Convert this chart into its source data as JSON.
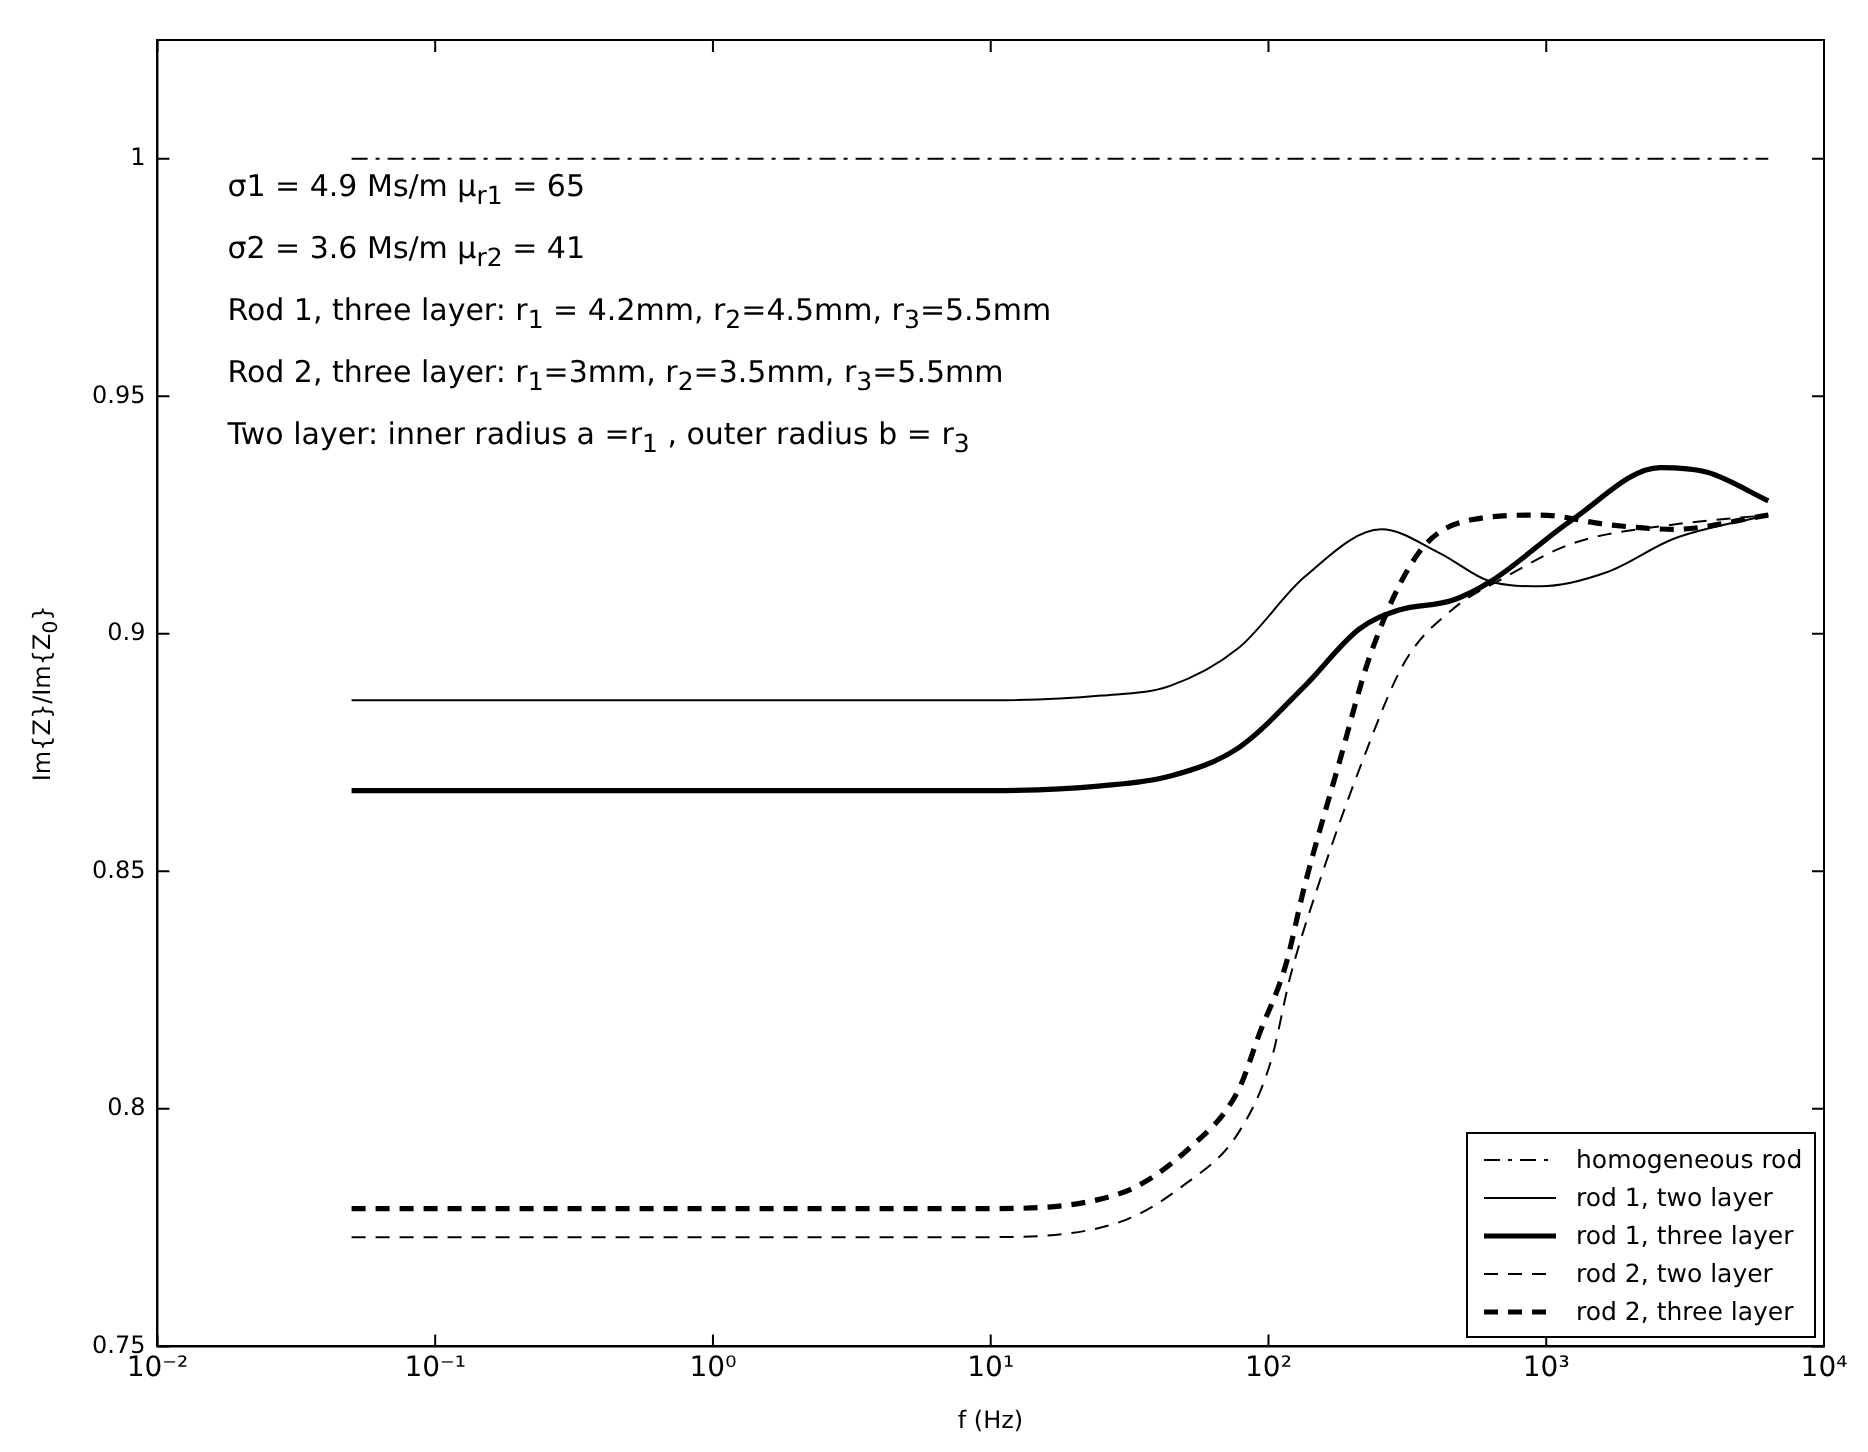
{
  "chart_data": {
    "type": "line",
    "xlabel": "f (Hz)",
    "ylabel": "Im{Z}/Im{Z$_{0}$}",
    "log": "x",
    "xlim": [
      0.01,
      10000
    ],
    "xticks": [
      {
        "value": 0.01,
        "label": "10⁻²"
      },
      {
        "value": 0.1,
        "label": "10⁻¹"
      },
      {
        "value": 1,
        "label": "10⁰"
      },
      {
        "value": 10,
        "label": "10¹"
      },
      {
        "value": 100,
        "label": "10²"
      },
      {
        "value": 1000,
        "label": "10³"
      },
      {
        "value": 10000,
        "label": "10⁴"
      }
    ],
    "ylim": [
      0.75,
      1.025
    ],
    "yticks": [
      0.75,
      0.8,
      0.85,
      0.9,
      0.95,
      1
    ],
    "grid": false,
    "legend": "bottom right",
    "marker": "none",
    "annotations": [
      "σ1 = 4.9 Ms/m  μ$_{r1}$ = 65",
      "σ2 = 3.6 Ms/m  μ$_{r2}$ = 41",
      "Rod 1, three  layer: r$_{1}$ = 4.2mm, r$_{2}$=4.5mm, r$_{3}$=5.5mm",
      "Rod 2, three  layer: r$_{1}$=3mm, r$_{2}$=3.5mm, r$_{3}$=5.5mm",
      "Two  layer: inner radius a =r$_{1}$ , outer radius b = r$_{3}$"
    ],
    "series": [
      {
        "name": "homogeneous rod",
        "color": "#000000",
        "line_style": "dashdot",
        "x": [
          0.05,
          6300
        ],
        "values": [
          1,
          1
        ]
      },
      {
        "name": "rod 1, two  layer",
        "color": "#000000",
        "line_style": "solid",
        "x": [
          0.05,
          10,
          25,
          44,
          78,
          135,
          255,
          413,
          630,
          955,
          1660,
          2880,
          6300
        ],
        "values": [
          0.886,
          0.886,
          0.887,
          0.889,
          0.897,
          0.912,
          0.922,
          0.917,
          0.911,
          0.91,
          0.913,
          0.92,
          0.925
        ]
      },
      {
        "name": "rod 1, three  layer",
        "color": "#000000",
        "line_style": "solid",
        "x": [
          0.05,
          10,
          25,
          44,
          78,
          135,
          212,
          295,
          457,
          630,
          1240,
          2570,
          3800,
          6300
        ],
        "values": [
          0.867,
          0.867,
          0.868,
          0.87,
          0.876,
          0.889,
          0.901,
          0.905,
          0.907,
          0.911,
          0.924,
          0.935,
          0.934,
          0.928
        ]
      },
      {
        "name": "rod 2, two  layer",
        "color": "#000000",
        "line_style": "dashed",
        "x": [
          0.05,
          9.4,
          28.6,
          49.7,
          78,
          102,
          120,
          151,
          214,
          309,
          457,
          716,
          1240,
          2880,
          6300
        ],
        "values": [
          0.773,
          0.773,
          0.776,
          0.784,
          0.795,
          0.81,
          0.828,
          0.847,
          0.872,
          0.894,
          0.905,
          0.912,
          0.919,
          0.923,
          0.925
        ]
      },
      {
        "name": "rod 2, three  layer",
        "color": "#000000",
        "line_style": "dashed",
        "x": [
          0.05,
          9.4,
          28.6,
          52.5,
          78,
          93,
          115,
          135,
          178,
          234,
          347,
          537,
          955,
          1660,
          2880,
          6300
        ],
        "values": [
          0.779,
          0.779,
          0.782,
          0.792,
          0.804,
          0.816,
          0.83,
          0.847,
          0.872,
          0.896,
          0.917,
          0.924,
          0.925,
          0.923,
          0.922,
          0.925
        ]
      }
    ]
  }
}
